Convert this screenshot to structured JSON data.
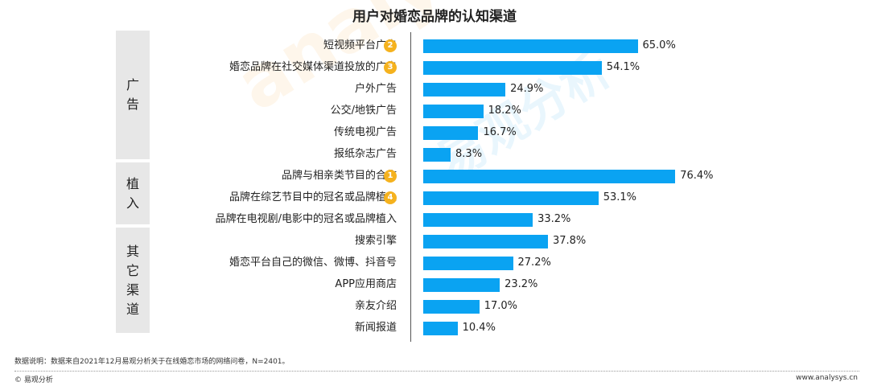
{
  "chart_data": {
    "type": "bar",
    "title": "用户对婚恋品牌的认知渠道",
    "groups": [
      {
        "label": "广告",
        "start": 0,
        "count": 6
      },
      {
        "label": "植入",
        "start": 6,
        "count": 3
      },
      {
        "label": "其它渠道",
        "start": 9,
        "count": 5
      }
    ],
    "categories": [
      "短视频平台广告",
      "婚恋品牌在社交媒体渠道投放的广告",
      "户外广告",
      "公交/地铁广告",
      "传统电视广告",
      "报纸杂志广告",
      "品牌与相亲类节目的合作",
      "品牌在综艺节目中的冠名或品牌植入",
      "品牌在电视剧/电影中的冠名或品牌植入",
      "搜索引擎",
      "婚恋平台自己的微信、微博、抖音号",
      "APP应用商店",
      "亲友介绍",
      "新闻报道"
    ],
    "values": [
      65.0,
      54.1,
      24.9,
      18.2,
      16.7,
      8.3,
      76.4,
      53.1,
      33.2,
      37.8,
      27.2,
      23.2,
      17.0,
      10.4
    ],
    "value_labels": [
      "65.0%",
      "54.1%",
      "24.9%",
      "18.2%",
      "16.7%",
      "8.3%",
      "76.4%",
      "53.1%",
      "33.2%",
      "37.8%",
      "27.2%",
      "23.2%",
      "17.0%",
      "10.4%"
    ],
    "ranks": [
      "2",
      "3",
      "",
      "",
      "",
      "",
      "1",
      "4",
      "",
      "",
      "",
      "",
      "",
      ""
    ],
    "xlim": [
      0,
      100
    ],
    "bar_color": "#0aa3f2",
    "rank_color": "#f5b21e",
    "group_color": "#e7e7e7"
  },
  "footer": {
    "note": "数据说明：数据来自2021年12月易观分析关于在线婚恋市场的网络问卷，N=2401。",
    "brand": "© 易观分析",
    "site": "www.analysys.cn"
  },
  "watermark": {
    "latin": "analysys",
    "cn": "易观分析"
  }
}
